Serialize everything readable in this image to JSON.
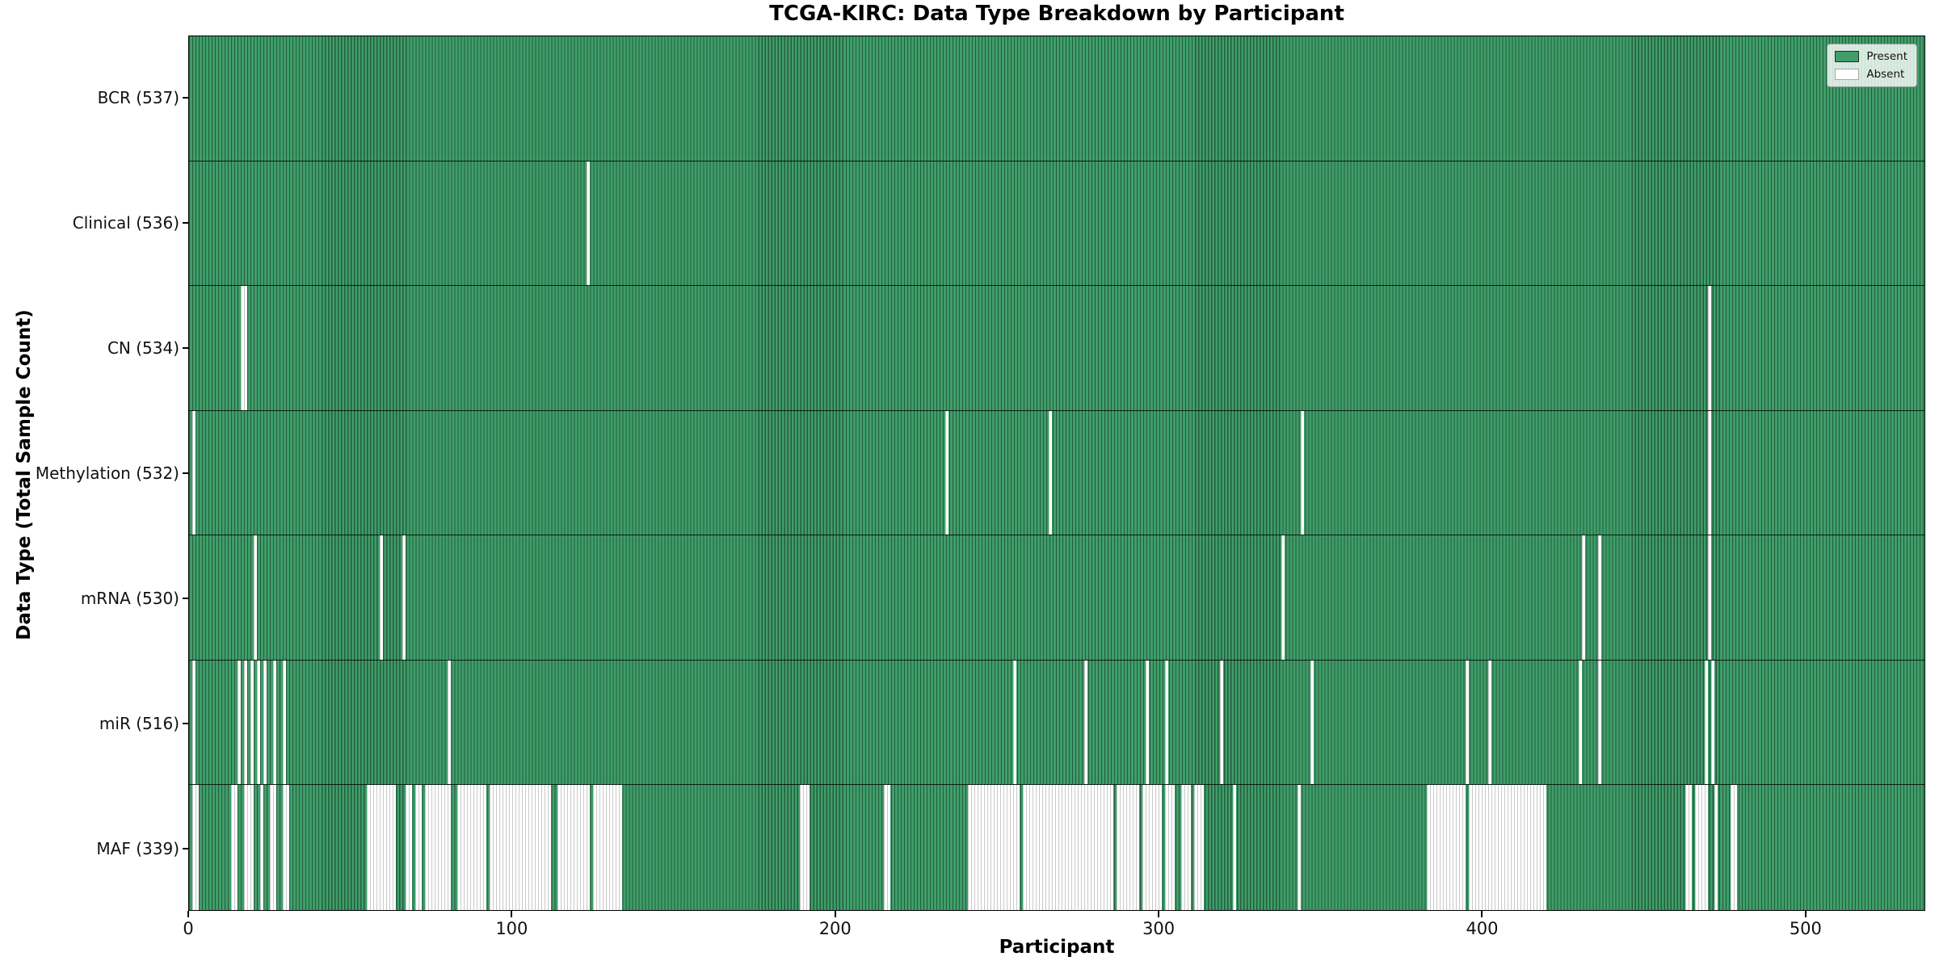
{
  "title": "TCGA-KIRC: Data Type Breakdown by Participant",
  "axes": {
    "x_label": "Participant",
    "y_label": "Data Type (Total Sample Count)",
    "x_ticks": [
      0,
      100,
      200,
      300,
      400,
      500
    ]
  },
  "legend": {
    "items": [
      {
        "label": "Present",
        "color": "#3f9e6a",
        "border": "#2a2a2a"
      },
      {
        "label": "Absent",
        "color": "#ffffff",
        "border": "#aaaaaa"
      }
    ]
  },
  "colors": {
    "present_fill": "#3f9e6a",
    "present_edge": "rgba(0,0,0,0.42)",
    "absent_fill": "#ffffff",
    "absent_edge": "#c9c9c9",
    "plot_border": "#000000",
    "row_divider": "rgba(0,0,0,0.8)"
  },
  "chart_data": {
    "type": "heatmap",
    "title": "TCGA-KIRC: Data Type Breakdown by Participant",
    "xlabel": "Participant",
    "ylabel": "Data Type (Total Sample Count)",
    "x_range": [
      0,
      537
    ],
    "x_ticks": [
      0,
      100,
      200,
      300,
      400,
      500
    ],
    "n_participants": 537,
    "legend": [
      "Present",
      "Absent"
    ],
    "legend_position": "upper right",
    "grid": false,
    "rows": [
      {
        "label": "BCR (537)",
        "data_type": "BCR",
        "present_count": 537,
        "absent_ranges": []
      },
      {
        "label": "Clinical (536)",
        "data_type": "Clinical",
        "present_count": 536,
        "absent_ranges": [
          [
            123,
            123
          ]
        ]
      },
      {
        "label": "CN (534)",
        "data_type": "CN",
        "present_count": 534,
        "absent_ranges": [
          [
            16,
            17
          ],
          [
            470,
            470
          ]
        ]
      },
      {
        "label": "Methylation (532)",
        "data_type": "Methylation",
        "present_count": 532,
        "absent_ranges": [
          [
            1,
            1
          ],
          [
            234,
            234
          ],
          [
            266,
            266
          ],
          [
            344,
            344
          ],
          [
            470,
            470
          ]
        ]
      },
      {
        "label": "mRNA (530)",
        "data_type": "mRNA",
        "present_count": 530,
        "absent_ranges": [
          [
            20,
            20
          ],
          [
            59,
            59
          ],
          [
            66,
            66
          ],
          [
            338,
            338
          ],
          [
            431,
            431
          ],
          [
            436,
            436
          ],
          [
            470,
            470
          ]
        ]
      },
      {
        "label": "miR (516)",
        "data_type": "miR",
        "present_count": 516,
        "absent_ranges": [
          [
            1,
            1
          ],
          [
            15,
            15
          ],
          [
            17,
            17
          ],
          [
            19,
            19
          ],
          [
            21,
            21
          ],
          [
            23,
            23
          ],
          [
            26,
            26
          ],
          [
            29,
            29
          ],
          [
            80,
            80
          ],
          [
            255,
            255
          ],
          [
            277,
            277
          ],
          [
            296,
            296
          ],
          [
            302,
            302
          ],
          [
            319,
            319
          ],
          [
            347,
            347
          ],
          [
            395,
            395
          ],
          [
            402,
            402
          ],
          [
            430,
            430
          ],
          [
            436,
            436
          ],
          [
            469,
            469
          ],
          [
            471,
            471
          ]
        ]
      },
      {
        "label": "MAF (339)",
        "data_type": "MAF",
        "present_count": 339,
        "absent_ranges": [
          [
            1,
            2
          ],
          [
            13,
            14
          ],
          [
            17,
            19
          ],
          [
            22,
            22
          ],
          [
            25,
            26
          ],
          [
            29,
            30
          ],
          [
            55,
            63
          ],
          [
            67,
            68
          ],
          [
            70,
            71
          ],
          [
            73,
            80
          ],
          [
            83,
            91
          ],
          [
            93,
            111
          ],
          [
            114,
            123
          ],
          [
            125,
            133
          ],
          [
            189,
            191
          ],
          [
            215,
            216
          ],
          [
            241,
            256
          ],
          [
            258,
            285
          ],
          [
            287,
            293
          ],
          [
            295,
            300
          ],
          [
            302,
            304
          ],
          [
            307,
            309
          ],
          [
            311,
            313
          ],
          [
            323,
            323
          ],
          [
            343,
            343
          ],
          [
            383,
            394
          ],
          [
            396,
            419
          ],
          [
            463,
            464
          ],
          [
            466,
            469
          ],
          [
            472,
            472
          ],
          [
            477,
            478
          ]
        ]
      }
    ]
  }
}
